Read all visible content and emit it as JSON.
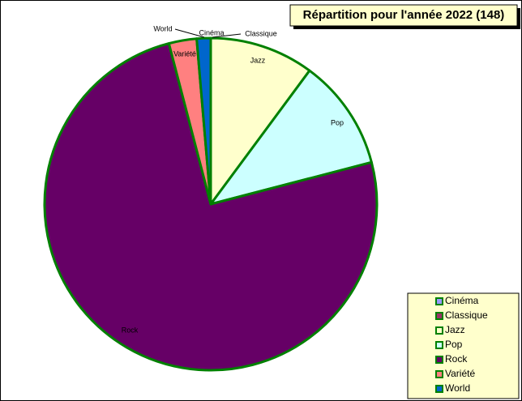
{
  "chart_data": {
    "type": "pie",
    "title": "Répartition pour l'année 2022 (148)",
    "categories": [
      "Cinéma",
      "Classique",
      "Jazz",
      "Pop",
      "Rock",
      "Variété",
      "World"
    ],
    "values": [
      0,
      0,
      15,
      16,
      111,
      4,
      2
    ],
    "colors": [
      "#9999ff",
      "#993366",
      "#ffffcc",
      "#ccffff",
      "#660066",
      "#ff8080",
      "#0066cc"
    ],
    "legend": "bottom-right"
  }
}
